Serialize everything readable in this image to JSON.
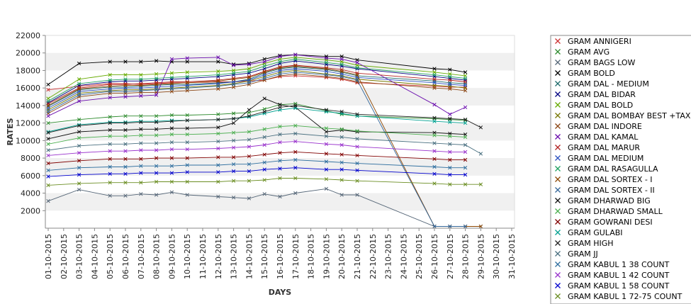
{
  "chart_data": {
    "type": "line",
    "xlabel": "DAYS",
    "ylabel": "RATES",
    "ylim": [
      0,
      22000
    ],
    "yticks": [
      2000,
      4000,
      6000,
      8000,
      10000,
      12000,
      14000,
      16000,
      18000,
      20000,
      22000
    ],
    "grid": "horizontal bands",
    "legend_position": "right",
    "x": [
      "01-10-2015",
      "02-10-2015",
      "03-10-2015",
      "04-10-2015",
      "05-10-2015",
      "06-10-2015",
      "07-10-2015",
      "08-10-2015",
      "09-10-2015",
      "10-10-2015",
      "11-10-2015",
      "12-10-2015",
      "13-10-2015",
      "14-10-2015",
      "15-10-2015",
      "16-10-2015",
      "17-10-2015",
      "18-10-2015",
      "19-10-2015",
      "20-10-2015",
      "21-10-2015",
      "22-10-2015",
      "23-10-2015",
      "24-10-2015",
      "25-10-2015",
      "26-10-2015",
      "27-10-2015",
      "28-10-2015",
      "29-10-2015",
      "30-10-2015",
      "31-10-2015"
    ],
    "series": [
      {
        "name": "GRAM ANNIGERI",
        "color": "#cc3333",
        "values": [
          15800,
          null,
          16200,
          null,
          16500,
          16500,
          16400,
          16500,
          16600,
          16600,
          null,
          16700,
          16700,
          16800,
          16900,
          17300,
          17400,
          null,
          17200,
          17000,
          16600,
          null,
          null,
          null,
          null,
          16200,
          16100,
          16100,
          null,
          null,
          null
        ]
      },
      {
        "name": "GRAM AVG",
        "color": "#2e8b2e",
        "values": [
          12000,
          null,
          12400,
          null,
          12700,
          12800,
          12800,
          12800,
          12900,
          12900,
          null,
          13000,
          13100,
          13200,
          13600,
          14100,
          14200,
          null,
          13400,
          13000,
          12800,
          null,
          null,
          null,
          null,
          12500,
          12400,
          12300,
          null,
          null,
          null
        ]
      },
      {
        "name": "GRAM BAGS LOW",
        "color": "#556677",
        "values": [
          3100,
          null,
          4400,
          null,
          3700,
          3700,
          3900,
          3800,
          4100,
          3800,
          null,
          3600,
          3500,
          3400,
          3900,
          3600,
          4000,
          null,
          4500,
          3800,
          3800,
          null,
          null,
          null,
          null,
          200,
          200,
          200,
          200,
          null,
          null
        ]
      },
      {
        "name": "GRAM BOLD",
        "color": "#000000",
        "values": [
          16400,
          null,
          18800,
          null,
          19000,
          19000,
          19000,
          19100,
          19000,
          19000,
          null,
          19000,
          18700,
          18800,
          19300,
          19700,
          19800,
          null,
          19600,
          19600,
          19200,
          null,
          null,
          null,
          null,
          18200,
          18100,
          17800,
          null,
          null,
          null
        ]
      },
      {
        "name": "GRAM DAL - MEDIUM",
        "color": "#1e6b6b",
        "values": [
          13900,
          null,
          15800,
          null,
          16100,
          16100,
          16200,
          16300,
          16400,
          16400,
          null,
          16600,
          16700,
          17000,
          17700,
          18200,
          18400,
          null,
          18100,
          17800,
          17400,
          null,
          null,
          null,
          null,
          16800,
          16600,
          16500,
          null,
          null,
          null
        ]
      },
      {
        "name": "GRAM DAL BIDAR",
        "color": "#000080",
        "values": [
          14300,
          null,
          16300,
          null,
          16700,
          16800,
          16800,
          16900,
          17000,
          17100,
          null,
          17300,
          17500,
          17700,
          18200,
          18800,
          19100,
          null,
          18700,
          18500,
          18200,
          null,
          null,
          null,
          null,
          17300,
          17100,
          16900,
          null,
          null,
          null
        ]
      },
      {
        "name": "GRAM DAL BOLD",
        "color": "#66aa00",
        "values": [
          14800,
          null,
          17000,
          null,
          17500,
          17500,
          17500,
          17600,
          17700,
          17800,
          null,
          17900,
          18000,
          18200,
          18800,
          19300,
          19500,
          null,
          19200,
          19000,
          18600,
          null,
          null,
          null,
          null,
          17800,
          17600,
          17400,
          null,
          null,
          null
        ]
      },
      {
        "name": "GRAM DAL BOMBAY BEST +TAX",
        "color": "#777700",
        "values": [
          13500,
          null,
          15400,
          null,
          15700,
          15800,
          15800,
          15900,
          16000,
          16100,
          null,
          16300,
          16500,
          16800,
          17300,
          17800,
          18000,
          null,
          17600,
          17400,
          17000,
          null,
          null,
          null,
          null,
          16300,
          16200,
          16000,
          null,
          null,
          null
        ]
      },
      {
        "name": "GRAM DAL INDORE",
        "color": "#8b4513",
        "values": [
          13100,
          null,
          15000,
          null,
          15400,
          15400,
          15500,
          15500,
          15600,
          15700,
          null,
          15900,
          16100,
          16400,
          16900,
          17400,
          17600,
          null,
          17300,
          17100,
          16700,
          null,
          null,
          null,
          null,
          16000,
          15900,
          15700,
          null,
          null,
          null
        ]
      },
      {
        "name": "GRAM DAL KAMAL",
        "color": "#6a0dad",
        "values": [
          12800,
          null,
          14500,
          null,
          14900,
          15000,
          15100,
          15200,
          19300,
          19400,
          null,
          19500,
          18600,
          18700,
          19000,
          19600,
          19800,
          null,
          19400,
          19300,
          18900,
          null,
          null,
          null,
          null,
          14100,
          13000,
          13800,
          null,
          null,
          null
        ]
      },
      {
        "name": "GRAM DAL MARUR",
        "color": "#b22222",
        "values": [
          14200,
          null,
          16000,
          null,
          16400,
          16400,
          16500,
          16600,
          16700,
          16700,
          null,
          16900,
          17100,
          17300,
          17900,
          18400,
          18600,
          null,
          18300,
          18100,
          17700,
          null,
          null,
          null,
          null,
          17000,
          16900,
          16700,
          null,
          null,
          null
        ]
      },
      {
        "name": "GRAM DAL MEDIUM",
        "color": "#2a4fbf",
        "values": [
          13700,
          null,
          15600,
          null,
          15900,
          16000,
          16000,
          16100,
          16200,
          16300,
          null,
          16500,
          16700,
          16900,
          17500,
          18000,
          18200,
          null,
          17900,
          17600,
          17200,
          null,
          null,
          null,
          null,
          16600,
          16400,
          16300,
          null,
          null,
          null
        ]
      },
      {
        "name": "GRAM DAL RASAGULLA",
        "color": "#20a060",
        "values": [
          14500,
          null,
          16500,
          null,
          16900,
          17000,
          17000,
          17100,
          17200,
          17300,
          null,
          17500,
          17700,
          17900,
          18500,
          19000,
          19300,
          null,
          18900,
          18700,
          18300,
          null,
          null,
          null,
          null,
          17500,
          17300,
          17100,
          null,
          null,
          null
        ]
      },
      {
        "name": "GRAM DAL SORTEX - I",
        "color": "#8b4500",
        "values": [
          14000,
          null,
          15900,
          null,
          16200,
          16300,
          16300,
          16400,
          16500,
          16600,
          null,
          16800,
          17000,
          17200,
          17800,
          18300,
          18500,
          null,
          18200,
          17900,
          17500,
          null,
          null,
          null,
          null,
          200,
          200,
          200,
          200,
          null,
          null
        ]
      },
      {
        "name": "GRAM DAL SORTEX - II",
        "color": "#336699",
        "values": [
          13300,
          null,
          15200,
          null,
          15600,
          15600,
          15700,
          15800,
          15900,
          16000,
          null,
          16200,
          16400,
          16600,
          17100,
          17600,
          17800,
          null,
          17500,
          17300,
          16900,
          null,
          null,
          null,
          null,
          200,
          200,
          200,
          null,
          null,
          null
        ]
      },
      {
        "name": "GRAM DHARWAD BIG",
        "color": "#111111",
        "values": [
          10200,
          null,
          11000,
          null,
          11200,
          11200,
          11300,
          11300,
          11400,
          11400,
          null,
          11500,
          12000,
          13500,
          14800,
          14100,
          13800,
          null,
          11000,
          11200,
          11000,
          null,
          null,
          null,
          null,
          10900,
          10800,
          10700,
          null,
          null,
          null
        ]
      },
      {
        "name": "GRAM DHARWAD SMALL",
        "color": "#4caf50",
        "values": [
          9600,
          null,
          10300,
          null,
          10500,
          10500,
          10600,
          10600,
          10700,
          10700,
          null,
          10800,
          10900,
          11000,
          11300,
          11600,
          11700,
          null,
          11400,
          11300,
          11100,
          null,
          null,
          null,
          null,
          10600,
          10500,
          10400,
          null,
          null,
          null
        ]
      },
      {
        "name": "GRAM GOWRANI DESI",
        "color": "#800000",
        "values": [
          7400,
          null,
          7700,
          null,
          7900,
          7900,
          7900,
          8000,
          8000,
          8000,
          null,
          8100,
          8100,
          8200,
          8400,
          8600,
          8700,
          null,
          8500,
          8400,
          8300,
          null,
          null,
          null,
          null,
          7900,
          7800,
          7800,
          null,
          null,
          null
        ]
      },
      {
        "name": "GRAM GULABI",
        "color": "#00a090",
        "values": [
          11000,
          null,
          11800,
          null,
          12100,
          12100,
          12200,
          12200,
          12300,
          12300,
          null,
          12400,
          12500,
          12700,
          13100,
          13500,
          13700,
          null,
          13300,
          13100,
          12800,
          null,
          null,
          null,
          null,
          12200,
          12100,
          12000,
          null,
          null,
          null
        ]
      },
      {
        "name": "GRAM HIGH",
        "color": "#222222",
        "values": [
          10900,
          null,
          11700,
          null,
          12000,
          12000,
          12100,
          12100,
          12200,
          12300,
          null,
          12400,
          12500,
          12800,
          13300,
          13800,
          14000,
          null,
          13500,
          13300,
          13000,
          null,
          null,
          null,
          null,
          12600,
          12500,
          12400,
          11500,
          null,
          null
        ]
      },
      {
        "name": "GRAM JJ",
        "color": "#4a7080",
        "values": [
          8900,
          null,
          9400,
          null,
          9600,
          9600,
          9700,
          9700,
          9800,
          9800,
          null,
          9900,
          10000,
          10100,
          10400,
          10700,
          10800,
          null,
          10500,
          10400,
          10200,
          null,
          null,
          null,
          null,
          9700,
          9600,
          9500,
          8500,
          null,
          null
        ]
      },
      {
        "name": "GRAM KABUL 1 38 COUNT",
        "color": "#2f6f9f",
        "values": [
          6600,
          null,
          6900,
          null,
          7000,
          7000,
          7100,
          7100,
          7100,
          7200,
          null,
          7200,
          7300,
          7300,
          7500,
          7700,
          7800,
          null,
          7600,
          7500,
          7400,
          null,
          null,
          null,
          null,
          7000,
          6900,
          6900,
          null,
          null,
          null
        ]
      },
      {
        "name": "GRAM KABUL 1 42 COUNT",
        "color": "#9932cc",
        "values": [
          8300,
          null,
          8600,
          null,
          8800,
          8800,
          8900,
          8900,
          9000,
          9000,
          null,
          9100,
          9200,
          9300,
          9500,
          9800,
          9900,
          null,
          9600,
          9500,
          9300,
          null,
          null,
          null,
          null,
          8800,
          8700,
          8700,
          null,
          null,
          null
        ]
      },
      {
        "name": "GRAM KABUL 1 58 COUNT",
        "color": "#0000cd",
        "values": [
          5900,
          null,
          6100,
          null,
          6200,
          6200,
          6300,
          6300,
          6300,
          6400,
          null,
          6400,
          6500,
          6500,
          6700,
          6800,
          6900,
          null,
          6700,
          6700,
          6600,
          null,
          null,
          null,
          null,
          6200,
          6100,
          6100,
          null,
          null,
          null
        ]
      },
      {
        "name": "GRAM KABUL 1 72-75 COUNT",
        "color": "#6b8e23",
        "values": [
          4900,
          null,
          5100,
          null,
          5200,
          5200,
          5200,
          5300,
          5300,
          5300,
          null,
          5300,
          5400,
          5400,
          5500,
          5700,
          5700,
          null,
          5600,
          5500,
          5400,
          null,
          null,
          null,
          null,
          5100,
          5000,
          5000,
          5000,
          null,
          null
        ]
      }
    ]
  }
}
